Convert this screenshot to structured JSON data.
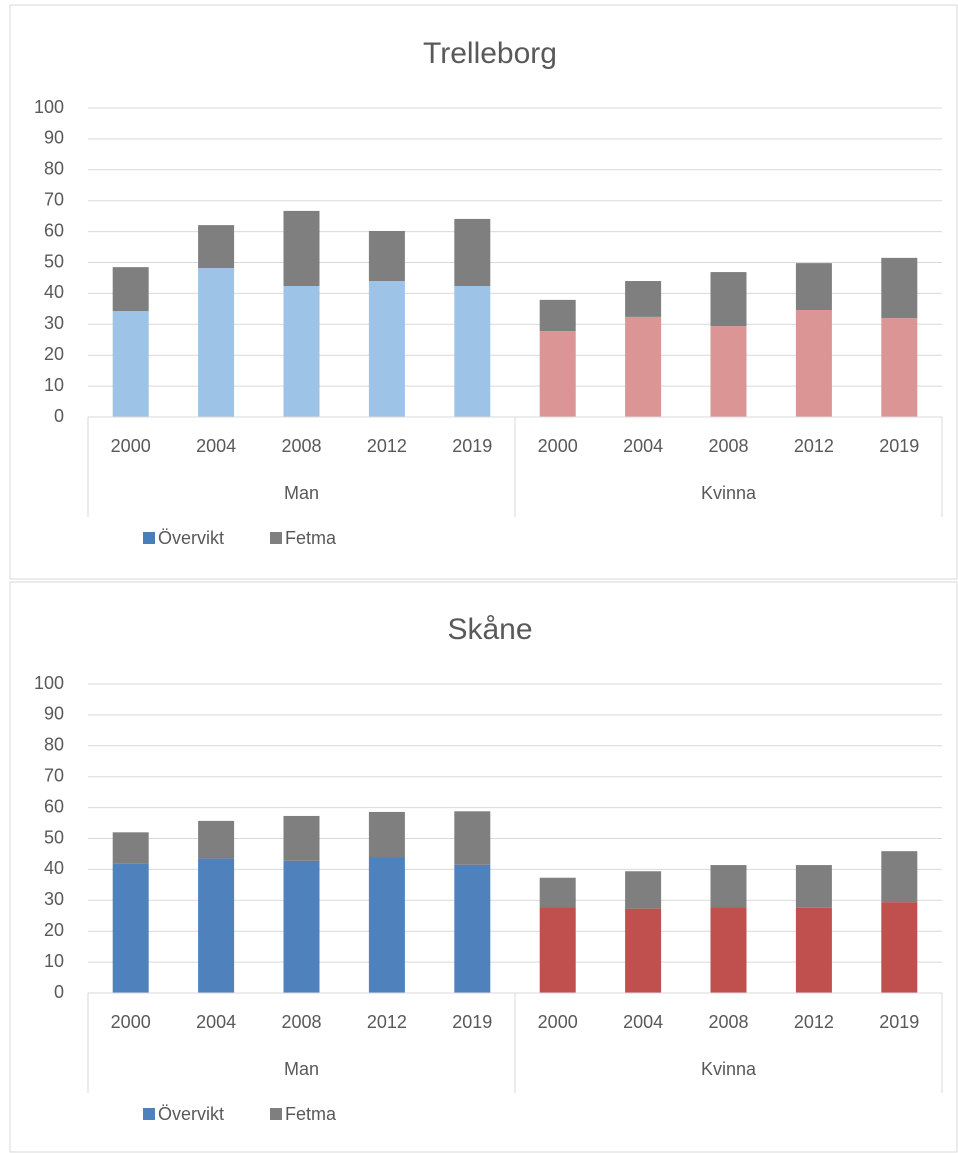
{
  "chart_data": [
    {
      "type": "bar",
      "stacked": true,
      "title": "Trelleborg",
      "categories": [
        "2000",
        "2004",
        "2008",
        "2012",
        "2019",
        "2000",
        "2004",
        "2008",
        "2012",
        "2019"
      ],
      "groups": [
        "Man",
        "Kvinna"
      ],
      "series": [
        {
          "name": "Övervikt",
          "color": "#4a7ebb",
          "point_colors": [
            "#9dc3e6",
            "#9dc3e6",
            "#9dc3e6",
            "#9dc3e6",
            "#9dc3e6",
            "#dc9595",
            "#dc9595",
            "#dc9595",
            "#dc9595",
            "#dc9595"
          ],
          "values": [
            34.3,
            48.2,
            42.4,
            44,
            42.4,
            27.8,
            32.4,
            29.4,
            34.6,
            32
          ]
        },
        {
          "name": "Fetma",
          "color": "#7f7f7f",
          "values": [
            14.2,
            13.9,
            24.3,
            16.2,
            21.7,
            10.1,
            11.6,
            17.5,
            15.2,
            19.5
          ]
        }
      ],
      "ylim": [
        0,
        100
      ],
      "yticks": [
        0,
        10,
        20,
        30,
        40,
        50,
        60,
        70,
        80,
        90,
        100
      ],
      "grid": true,
      "legend": "bottom"
    },
    {
      "type": "bar",
      "stacked": true,
      "title": "Skåne",
      "categories": [
        "2000",
        "2004",
        "2008",
        "2012",
        "2019",
        "2000",
        "2004",
        "2008",
        "2012",
        "2019"
      ],
      "groups": [
        "Man",
        "Kvinna"
      ],
      "series": [
        {
          "name": "Övervikt",
          "color": "#4f81bd",
          "point_colors": [
            "#4f81bd",
            "#4f81bd",
            "#4f81bd",
            "#4f81bd",
            "#4f81bd",
            "#c0504d",
            "#c0504d",
            "#c0504d",
            "#c0504d",
            "#c0504d"
          ],
          "values": [
            42,
            43.5,
            42.8,
            44,
            41.5,
            27.8,
            27.3,
            27.8,
            27.6,
            29.4
          ]
        },
        {
          "name": "Fetma",
          "color": "#7f7f7f",
          "values": [
            10,
            12.2,
            14.5,
            14.6,
            17.3,
            9.5,
            12.1,
            13.6,
            13.8,
            16.5
          ]
        }
      ],
      "ylim": [
        0,
        100
      ],
      "yticks": [
        0,
        10,
        20,
        30,
        40,
        50,
        60,
        70,
        80,
        90,
        100
      ],
      "grid": true,
      "legend": "bottom"
    }
  ]
}
